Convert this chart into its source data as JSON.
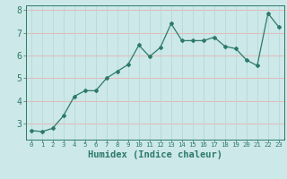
{
  "xlabel": "Humidex (Indice chaleur)",
  "x_values": [
    0,
    1,
    2,
    3,
    4,
    5,
    6,
    7,
    8,
    9,
    10,
    11,
    12,
    13,
    14,
    15,
    16,
    17,
    18,
    19,
    20,
    21,
    22,
    23
  ],
  "y_values": [
    2.7,
    2.65,
    2.8,
    3.35,
    4.2,
    4.45,
    4.45,
    5.0,
    5.3,
    5.6,
    6.45,
    5.95,
    6.35,
    7.4,
    6.65,
    6.65,
    6.65,
    6.8,
    6.4,
    6.3,
    5.8,
    5.55,
    7.85,
    7.25
  ],
  "line_color": "#2d7a6a",
  "marker": "D",
  "marker_size": 2.0,
  "bg_color": "#cce8e8",
  "grid_color_h": "#e8b0b0",
  "grid_color_v": "#b8d8d8",
  "tick_color": "#2d7a6a",
  "label_color": "#2d7a6a",
  "ylim": [
    2.3,
    8.2
  ],
  "yticks": [
    3,
    4,
    5,
    6,
    7,
    8
  ],
  "xlim": [
    -0.5,
    23.5
  ],
  "xticks": [
    0,
    1,
    2,
    3,
    4,
    5,
    6,
    7,
    8,
    9,
    10,
    11,
    12,
    13,
    14,
    15,
    16,
    17,
    18,
    19,
    20,
    21,
    22,
    23
  ],
  "xlabel_fontsize": 7.5,
  "ytick_fontsize": 7.0,
  "xtick_fontsize": 5.2
}
